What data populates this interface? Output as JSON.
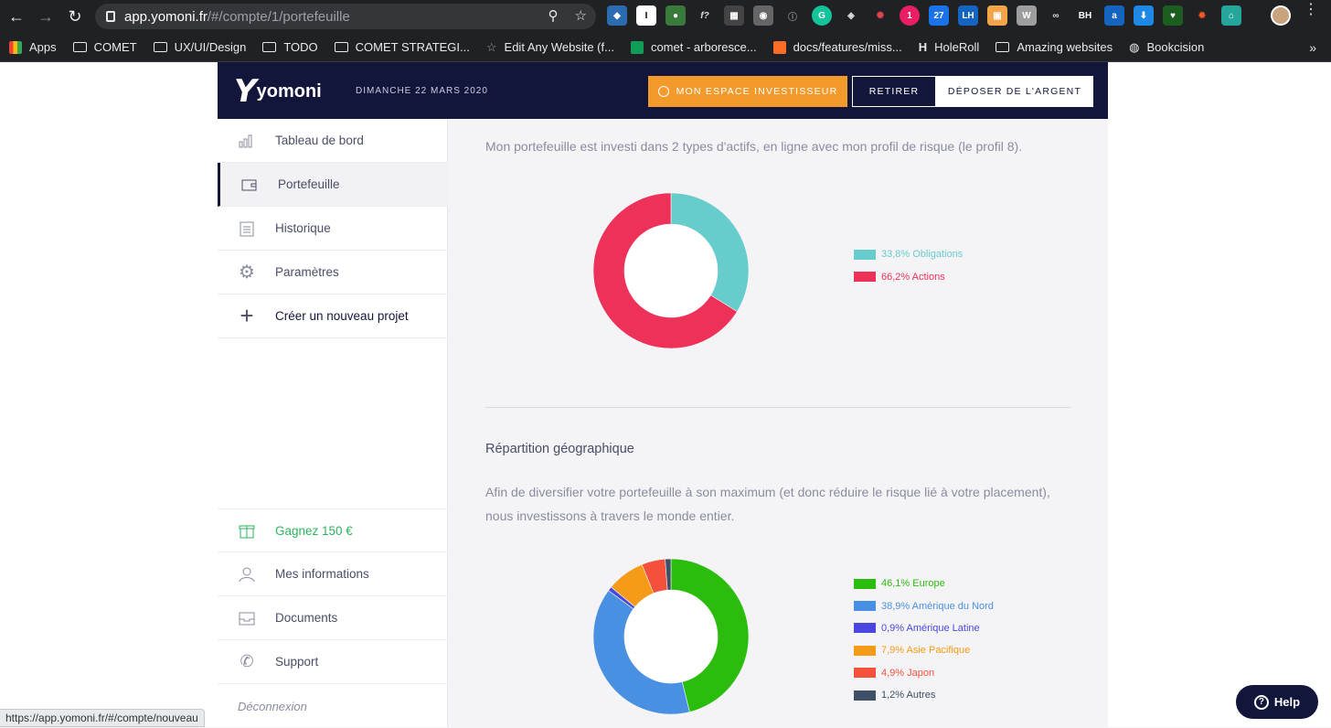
{
  "browser": {
    "url_host": "app.yomoni.fr",
    "url_path": "/#/compte/1/portefeuille",
    "status_tooltip": "https://app.yomoni.fr/#/compte/nouveau",
    "bookmarks": [
      {
        "label": "Apps",
        "kind": "apps"
      },
      {
        "label": "COMET",
        "kind": "folder"
      },
      {
        "label": "UX/UI/Design",
        "kind": "folder"
      },
      {
        "label": "TODO",
        "kind": "folder"
      },
      {
        "label": "COMET STRATEGI...",
        "kind": "folder"
      },
      {
        "label": "Edit Any Website (f...",
        "kind": "star"
      },
      {
        "label": "comet - arboresce...",
        "kind": "sheet"
      },
      {
        "label": "docs/features/miss...",
        "kind": "gitlab"
      },
      {
        "label": "HoleRoll",
        "kind": "holeroll"
      },
      {
        "label": "Amazing websites",
        "kind": "folder"
      },
      {
        "label": "Bookcision",
        "kind": "globe"
      }
    ],
    "bookmarks_more": "»",
    "extensions": [
      "LH",
      "BH",
      "27",
      "1",
      "f?",
      "W"
    ]
  },
  "header": {
    "logo": "yomoni",
    "date": "DIMANCHE 22 MARS 2020",
    "btn_investor": "MON ESPACE INVESTISSEUR",
    "btn_retirer": "RETIRER",
    "btn_deposer": "DÉPOSER DE L'ARGENT"
  },
  "sidebar": {
    "items": [
      {
        "label": "Tableau de bord",
        "icon": "bar-chart-icon"
      },
      {
        "label": "Portefeuille",
        "icon": "wallet-icon"
      },
      {
        "label": "Historique",
        "icon": "clipboard-icon"
      },
      {
        "label": "Paramètres",
        "icon": "gear-icon"
      },
      {
        "label": "Créer un nouveau projet",
        "icon": "plus-icon"
      }
    ],
    "bottom_items": [
      {
        "label": "Gagnez 150 €",
        "icon": "gift-icon"
      },
      {
        "label": "Mes informations",
        "icon": "user-icon"
      },
      {
        "label": "Documents",
        "icon": "inbox-icon"
      },
      {
        "label": "Support",
        "icon": "phone-icon"
      },
      {
        "label": "Déconnexion",
        "icon": ""
      }
    ]
  },
  "main": {
    "intro": "Mon portefeuille est investi dans 2 types d'actifs, en ligne avec mon profil de risque (le profil 8).",
    "geo_title": "Répartition géographique",
    "geo_desc": "Afin de diversifier votre portefeuille à son maximum (et donc réduire le risque lié à votre placement), nous investissons à travers le monde entier."
  },
  "help": {
    "label": "Help"
  },
  "chart_data": [
    {
      "type": "pie",
      "categories": [
        "Obligations",
        "Actions"
      ],
      "values": [
        33.8,
        66.2
      ],
      "labels": [
        "33,8% Obligations",
        "66,2% Actions"
      ],
      "colors": [
        "#66cccc",
        "#ee3158"
      ]
    },
    {
      "type": "pie",
      "categories": [
        "Europe",
        "Amérique du Nord",
        "Amérique Latine",
        "Asie Pacifique",
        "Japon",
        "Autres"
      ],
      "values": [
        46.1,
        38.9,
        0.9,
        7.9,
        4.9,
        1.2
      ],
      "labels": [
        "46,1% Europe",
        "38,9% Amérique du Nord",
        "0,9% Amérique Latine",
        "7,9% Asie Pacifique",
        "4,9% Japon",
        "1,2% Autres"
      ],
      "colors": [
        "#2bbd0e",
        "#4a90e2",
        "#4a47e0",
        "#f59b17",
        "#f4503b",
        "#3d5066"
      ]
    }
  ]
}
